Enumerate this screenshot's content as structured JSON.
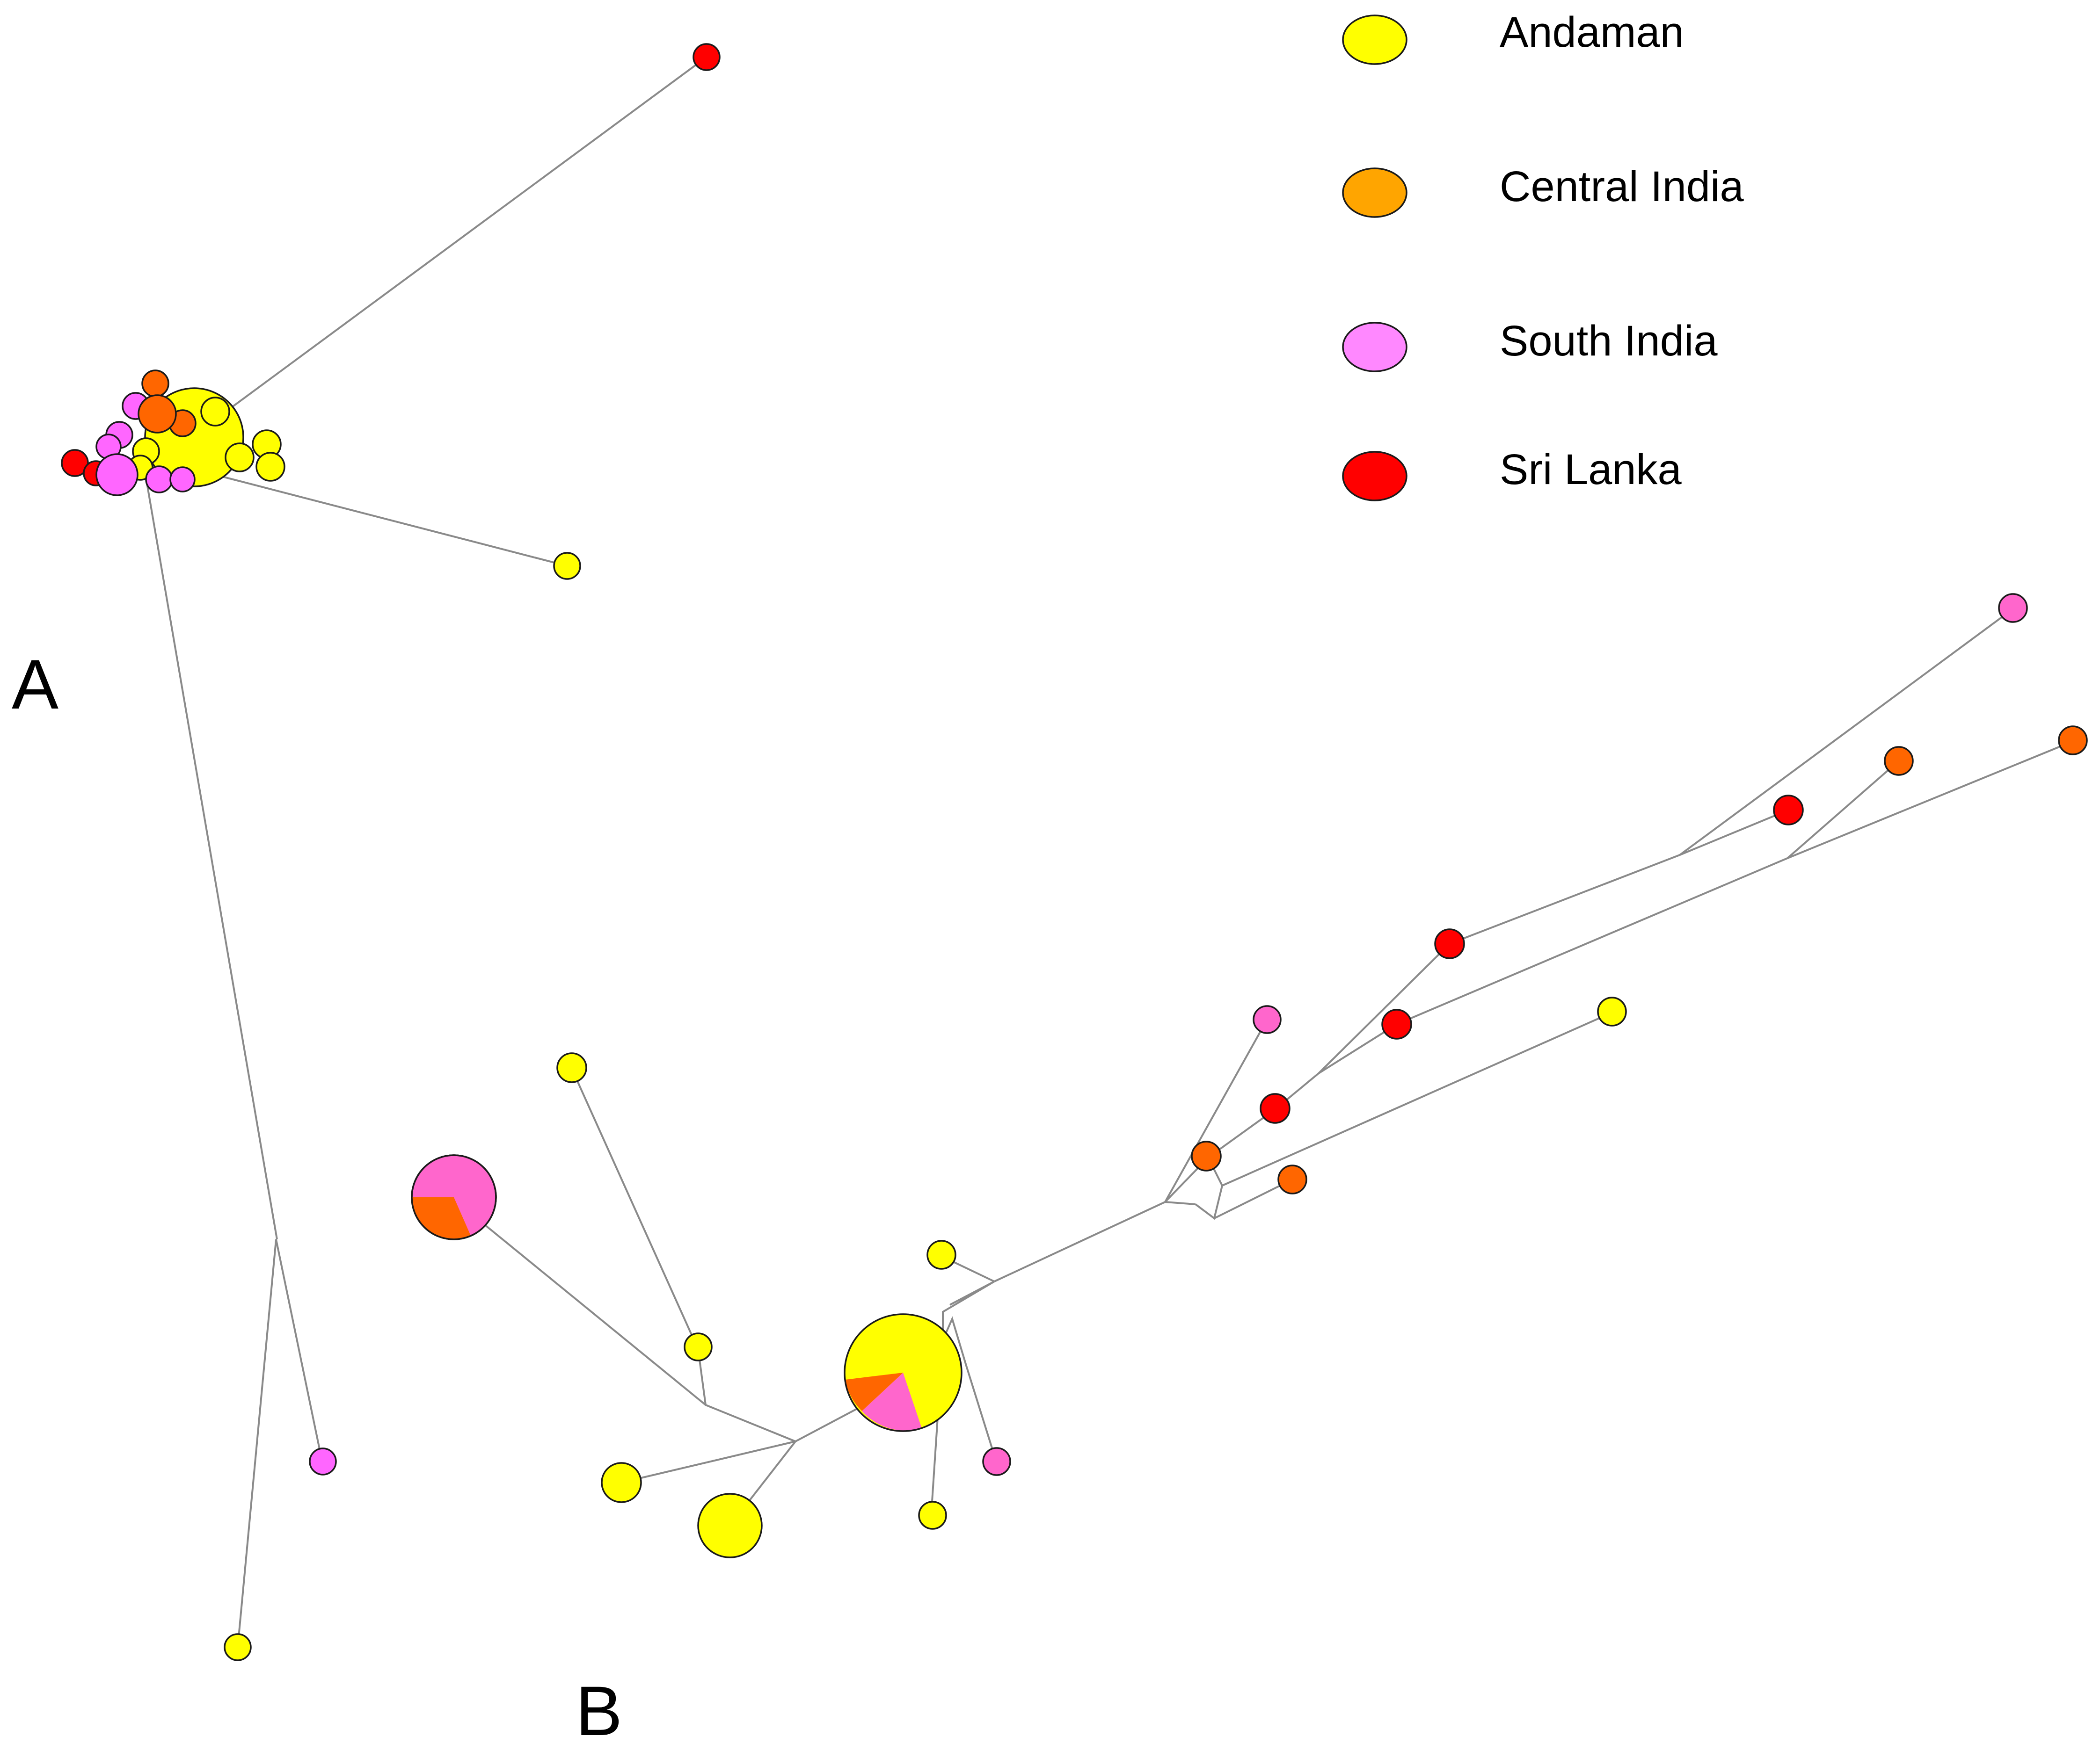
{
  "colors": {
    "andaman": "#ffff00",
    "central_india": "#ffa500",
    "south_india": "#ff88ff",
    "sri_lanka": "#ff0000",
    "central_india_node": "#ff6600",
    "south_india_node": "#ff66cc",
    "edge": "#8a8a8a"
  },
  "legend": [
    {
      "label": "Andaman",
      "color": "#ffff00"
    },
    {
      "label": "Central India",
      "color": "#ffa500"
    },
    {
      "label": "South India",
      "color": "#ff88ff"
    },
    {
      "label": "Sri Lanka",
      "color": "#ff0000"
    }
  ],
  "panels": {
    "a": {
      "label": "A"
    },
    "b": {
      "label": "B"
    }
  }
}
